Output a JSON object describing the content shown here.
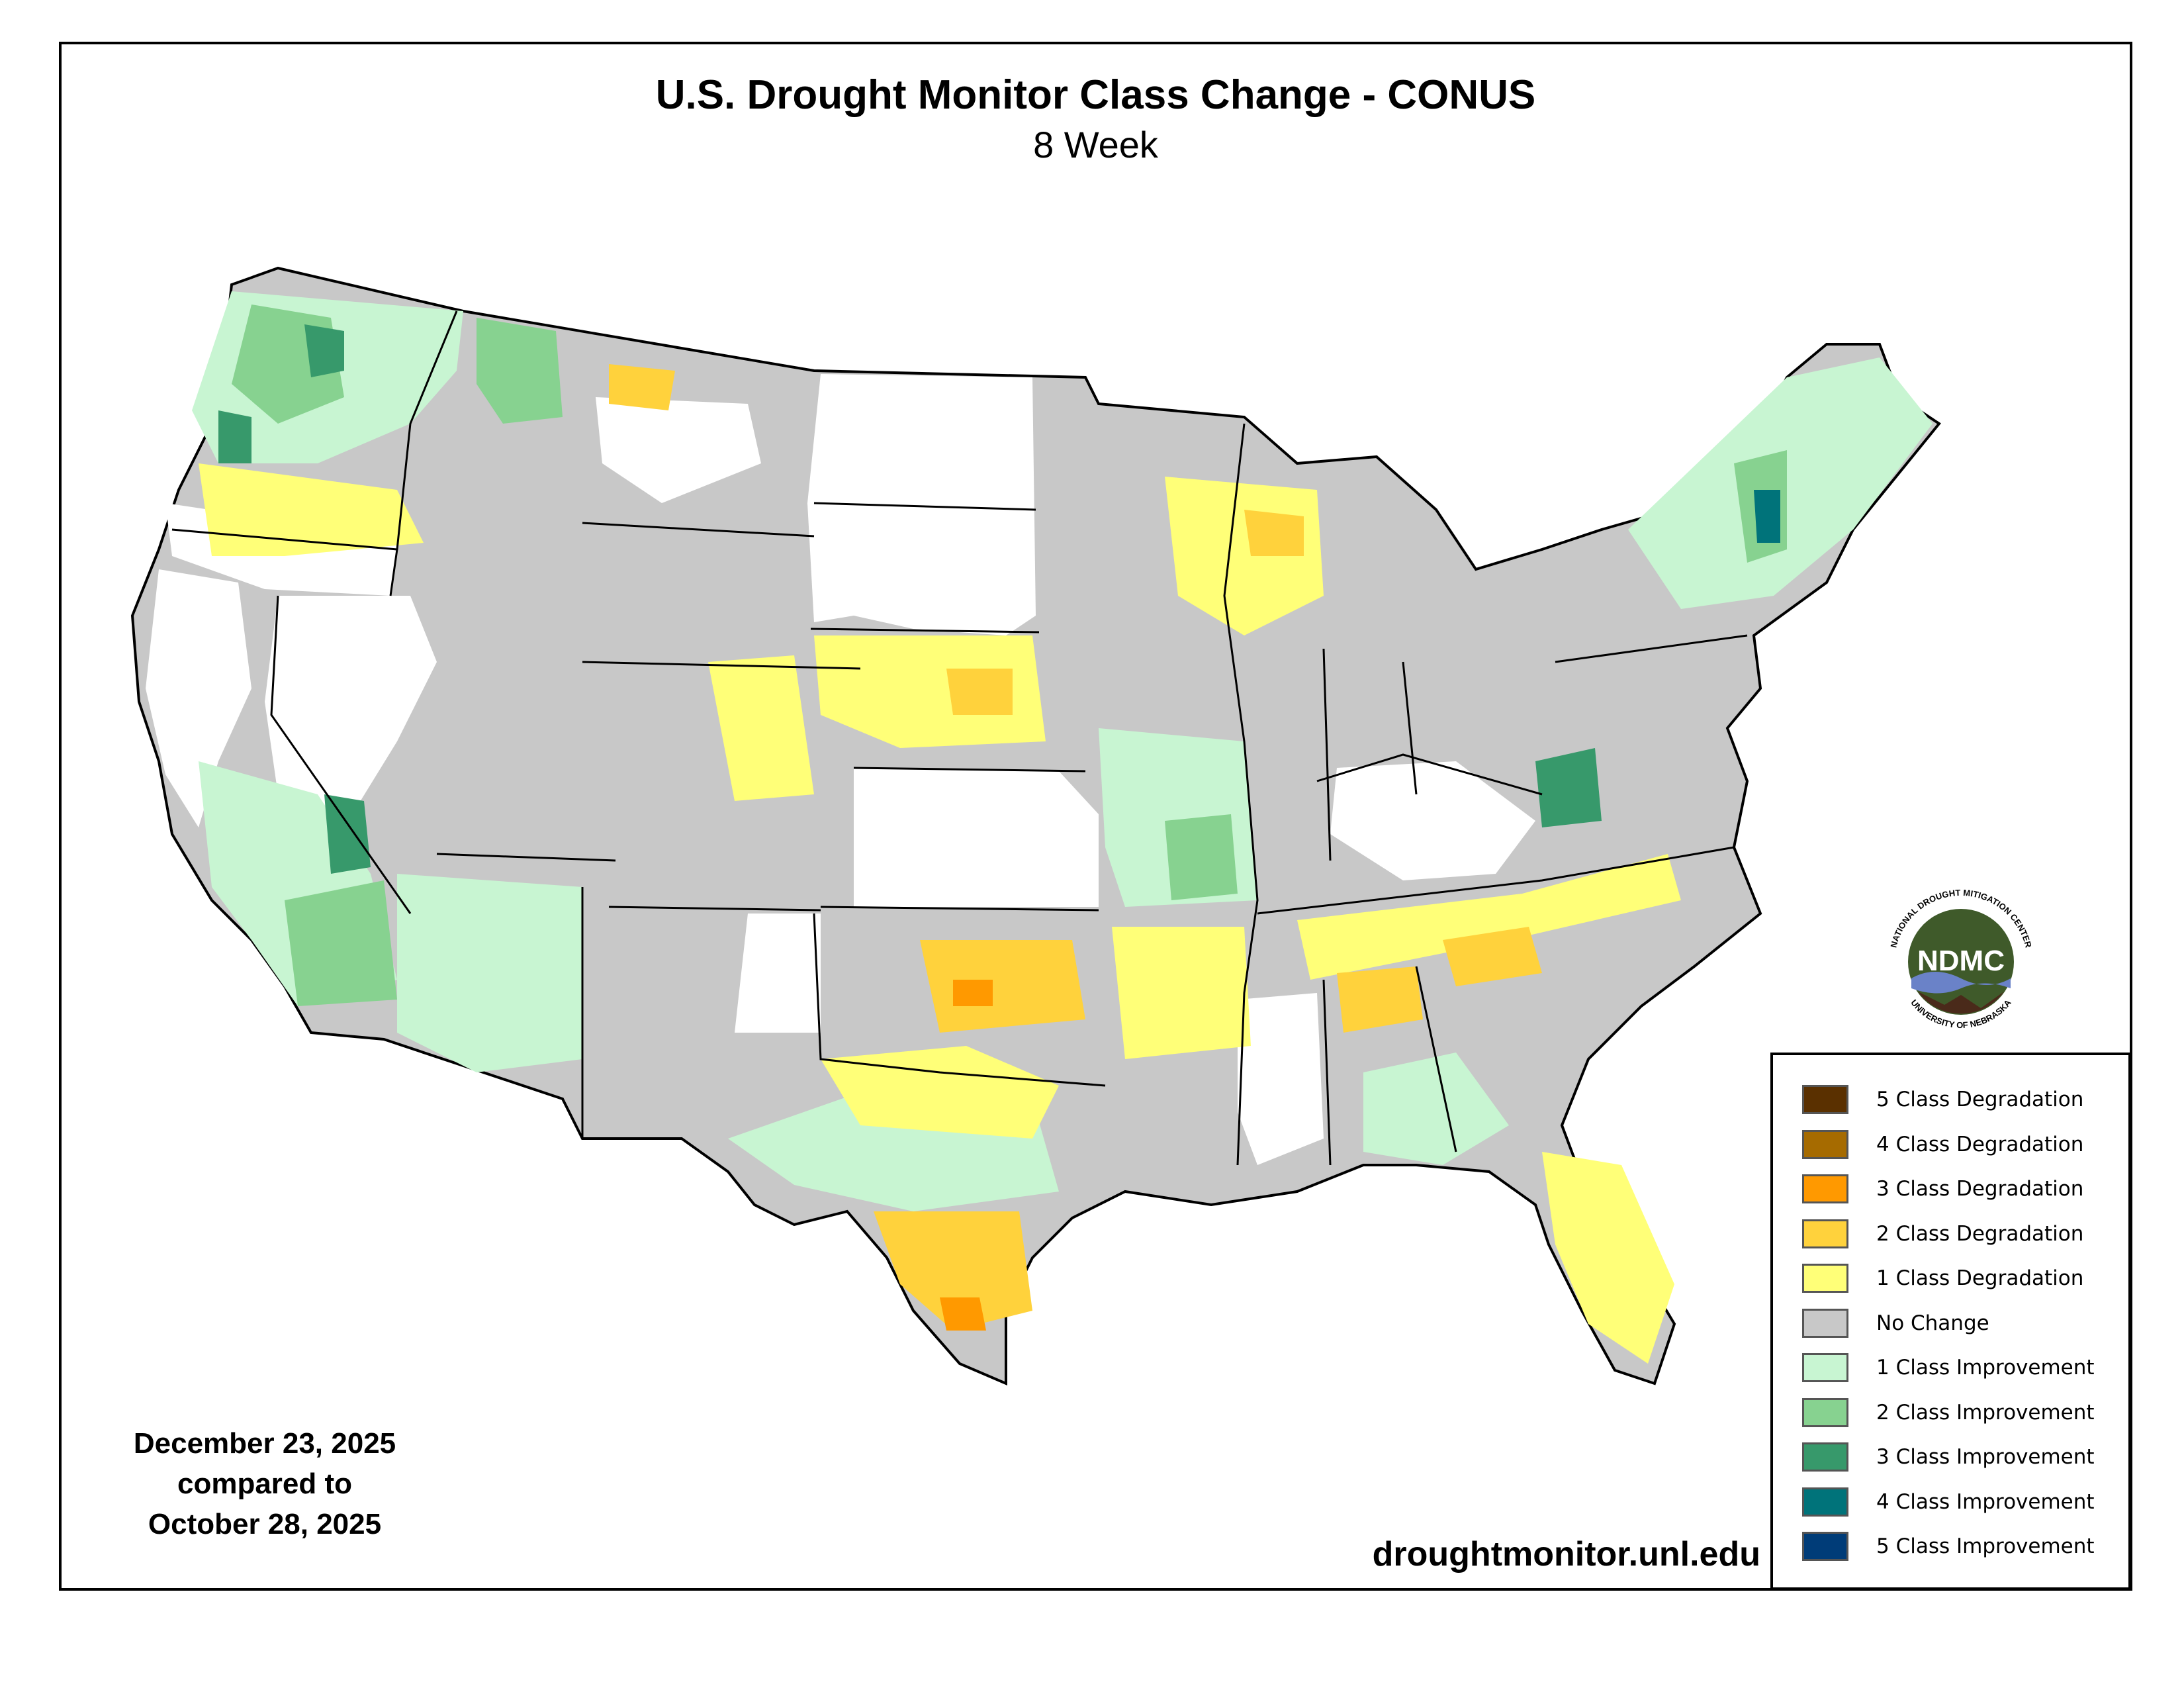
{
  "title": "U.S. Drought Monitor Class Change - CONUS",
  "subtitle": "8 Week",
  "dates": {
    "current": "December 23, 2025",
    "compared": "compared to",
    "previous": "October 28, 2025"
  },
  "url": "droughtmonitor.unl.edu",
  "logo": {
    "ring_text_top": "NATIONAL DROUGHT MITIGATION CENTER",
    "ring_text_bottom": "UNIVERSITY OF NEBRASKA",
    "center_text": "NDMC"
  },
  "legend": [
    {
      "label": "5 Class Degradation",
      "color": "#5a3000"
    },
    {
      "label": "4 Class Degradation",
      "color": "#a66b00"
    },
    {
      "label": "3 Class Degradation",
      "color": "#ff9900"
    },
    {
      "label": "2 Class Degradation",
      "color": "#ffd23c"
    },
    {
      "label": "1 Class Degradation",
      "color": "#ffff78"
    },
    {
      "label": "No Change",
      "color": "#c8c8c8"
    },
    {
      "label": "1 Class Improvement",
      "color": "#c8f5d2"
    },
    {
      "label": "2 Class Improvement",
      "color": "#87d290"
    },
    {
      "label": "3 Class Improvement",
      "color": "#37996b"
    },
    {
      "label": "4 Class Improvement",
      "color": "#00737a"
    },
    {
      "label": "5 Class Improvement",
      "color": "#003c78"
    }
  ]
}
